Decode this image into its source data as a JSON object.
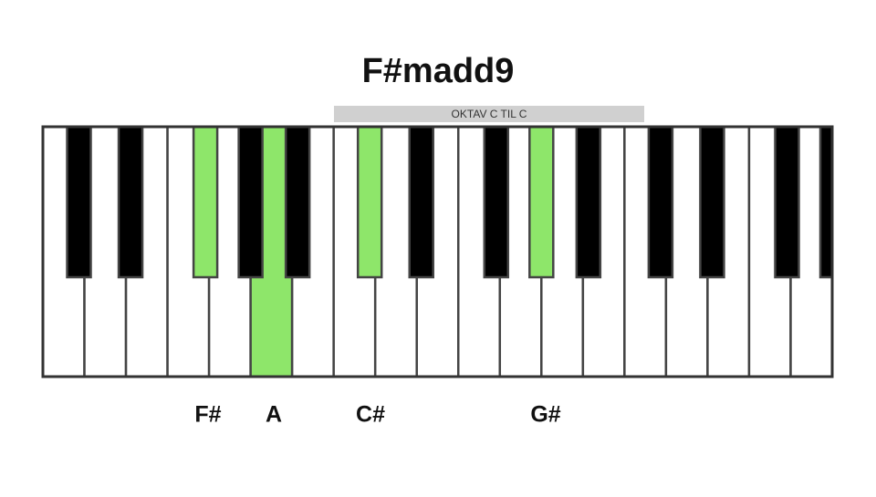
{
  "title": "F#madd9",
  "octave_label": "OKTAV C TIL C",
  "note_labels": [
    "F#",
    "A",
    "C#",
    "G#"
  ]
}
